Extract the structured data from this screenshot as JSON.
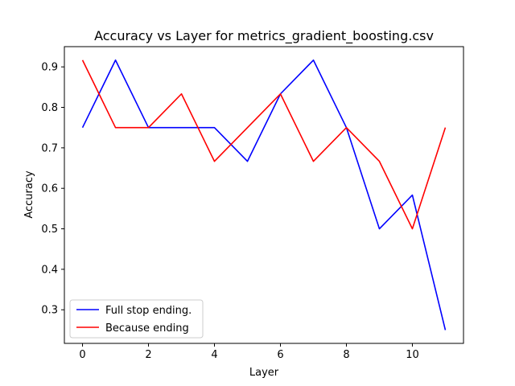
{
  "chart_data": {
    "type": "line",
    "title": "Accuracy vs Layer for metrics_gradient_boosting.csv",
    "xlabel": "Layer",
    "ylabel": "Accuracy",
    "xlim": [
      -0.55,
      11.55
    ],
    "ylim": [
      0.217,
      0.95
    ],
    "xticks": [
      0,
      2,
      4,
      6,
      8,
      10
    ],
    "yticks": [
      0.3,
      0.4,
      0.5,
      0.6,
      0.7,
      0.8,
      0.9
    ],
    "x": [
      0,
      1,
      2,
      3,
      4,
      5,
      6,
      7,
      8,
      9,
      10,
      11
    ],
    "series": [
      {
        "name": "Full stop ending.",
        "color": "#0000ff",
        "values": [
          0.75,
          0.9167,
          0.75,
          0.75,
          0.75,
          0.6667,
          0.8333,
          0.9167,
          0.75,
          0.5,
          0.5833,
          0.25
        ]
      },
      {
        "name": "Because ending",
        "color": "#ff0000",
        "values": [
          0.9167,
          0.75,
          0.75,
          0.8333,
          0.6667,
          0.75,
          0.8333,
          0.6667,
          0.75,
          0.6667,
          0.5,
          0.75
        ]
      }
    ],
    "grid": false,
    "legend_position": "lower-left"
  }
}
